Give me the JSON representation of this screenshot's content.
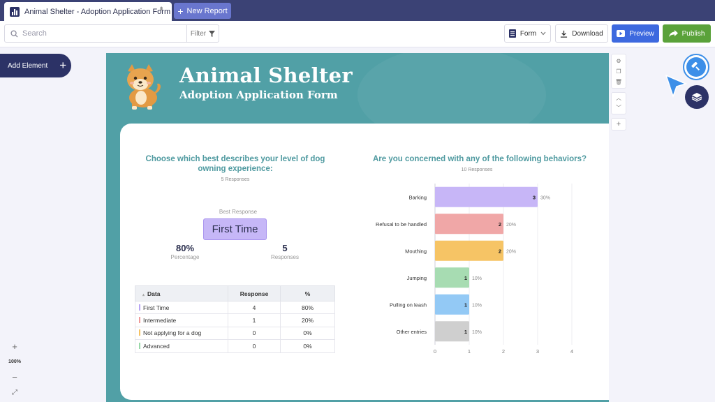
{
  "tab": {
    "title": "Animal Shelter - Adoption Application Form",
    "new_report_label": "New Report"
  },
  "toolbar": {
    "search_placeholder": "Search",
    "filter_label": "Filter",
    "form_label": "Form",
    "download_label": "Download",
    "preview_label": "Preview",
    "publish_label": "Publish"
  },
  "sidebar": {
    "add_element_label": "Add Element",
    "zoom_level": "100%"
  },
  "header": {
    "title": "Animal Shelter",
    "subtitle": "Adoption Application Form"
  },
  "question1": {
    "title": "Choose which best describes your level of dog owning experience:",
    "responses_label": "5 Responses",
    "best_response_label": "Best Response",
    "best_response_value": "First Time",
    "percentage_value": "80%",
    "percentage_label": "Percentage",
    "responses_value": "5",
    "responses_value_label": "Responses",
    "table": {
      "headers": [
        "Data",
        "Response",
        "%"
      ],
      "rows": [
        {
          "label": "First Time",
          "count": "4",
          "percent": "80%",
          "color": "#b7a4f5"
        },
        {
          "label": "Intermediate",
          "count": "1",
          "percent": "20%",
          "color": "#ef9a9a"
        },
        {
          "label": "Not applying for a dog",
          "count": "0",
          "percent": "0%",
          "color": "#f6c262"
        },
        {
          "label": "Advanced",
          "count": "0",
          "percent": "0%",
          "color": "#98d8a8"
        }
      ]
    }
  },
  "question2": {
    "title": "Are you concerned with any of the following behaviors?",
    "responses_label": "10 Responses"
  },
  "chart_data": {
    "type": "bar",
    "orientation": "horizontal",
    "categories": [
      "Barking",
      "Refusal to be handled",
      "Mouthing",
      "Jumping",
      "Pulling on leash",
      "Other entries"
    ],
    "values": [
      3,
      2,
      2,
      1,
      1,
      1
    ],
    "percent_labels": [
      "30%",
      "20%",
      "20%",
      "10%",
      "10%",
      "10%"
    ],
    "colors": [
      "#c7b6f7",
      "#f0a7a7",
      "#f6c465",
      "#a7dcb2",
      "#93c9f5",
      "#cfcfcf"
    ],
    "xlim": [
      0,
      4
    ],
    "xticks": [
      "0",
      "1",
      "2",
      "3",
      "4"
    ],
    "grid": true
  }
}
